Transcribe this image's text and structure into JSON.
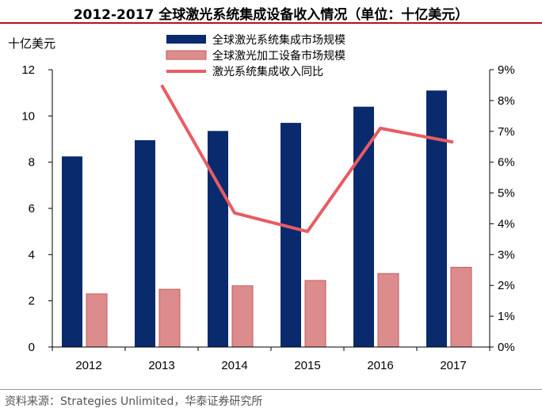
{
  "header": {
    "title": "2012-2017 全球激光系统集成设备收入情况（单位：十亿美元）",
    "unit_label": "十亿美元",
    "source": "资料来源：Strategies Unlimited，华泰证券研究所"
  },
  "colors": {
    "series1": "#0a2a6e",
    "series2": "#dc8c8c",
    "series2_border": "#c65a5a",
    "series3": "#e85c64",
    "title_rule": "#b5121b"
  },
  "chart_data": {
    "type": "bar",
    "categories": [
      "2012",
      "2013",
      "2014",
      "2015",
      "2016",
      "2017"
    ],
    "series": [
      {
        "name": "全球激光系统集成市场规模",
        "type": "bar",
        "axis": "left",
        "values": [
          8.25,
          8.95,
          9.35,
          9.7,
          10.4,
          11.1
        ]
      },
      {
        "name": "全球激光加工设备市场规模",
        "type": "bar",
        "axis": "left",
        "values": [
          2.3,
          2.5,
          2.65,
          2.88,
          3.18,
          3.45
        ]
      },
      {
        "name": "激光系统集成收入同比",
        "type": "line",
        "axis": "right",
        "values": [
          null,
          8.5,
          4.35,
          3.75,
          7.1,
          6.65
        ]
      }
    ],
    "ylim": [
      0,
      12
    ],
    "y_ticks": [
      "0",
      "2",
      "4",
      "6",
      "8",
      "10",
      "12"
    ],
    "y2lim": [
      0,
      9
    ],
    "y2_ticks": [
      "0%",
      "1%",
      "2%",
      "3%",
      "4%",
      "5%",
      "6%",
      "7%",
      "8%",
      "9%"
    ],
    "grid": false,
    "legend_position": "top"
  }
}
